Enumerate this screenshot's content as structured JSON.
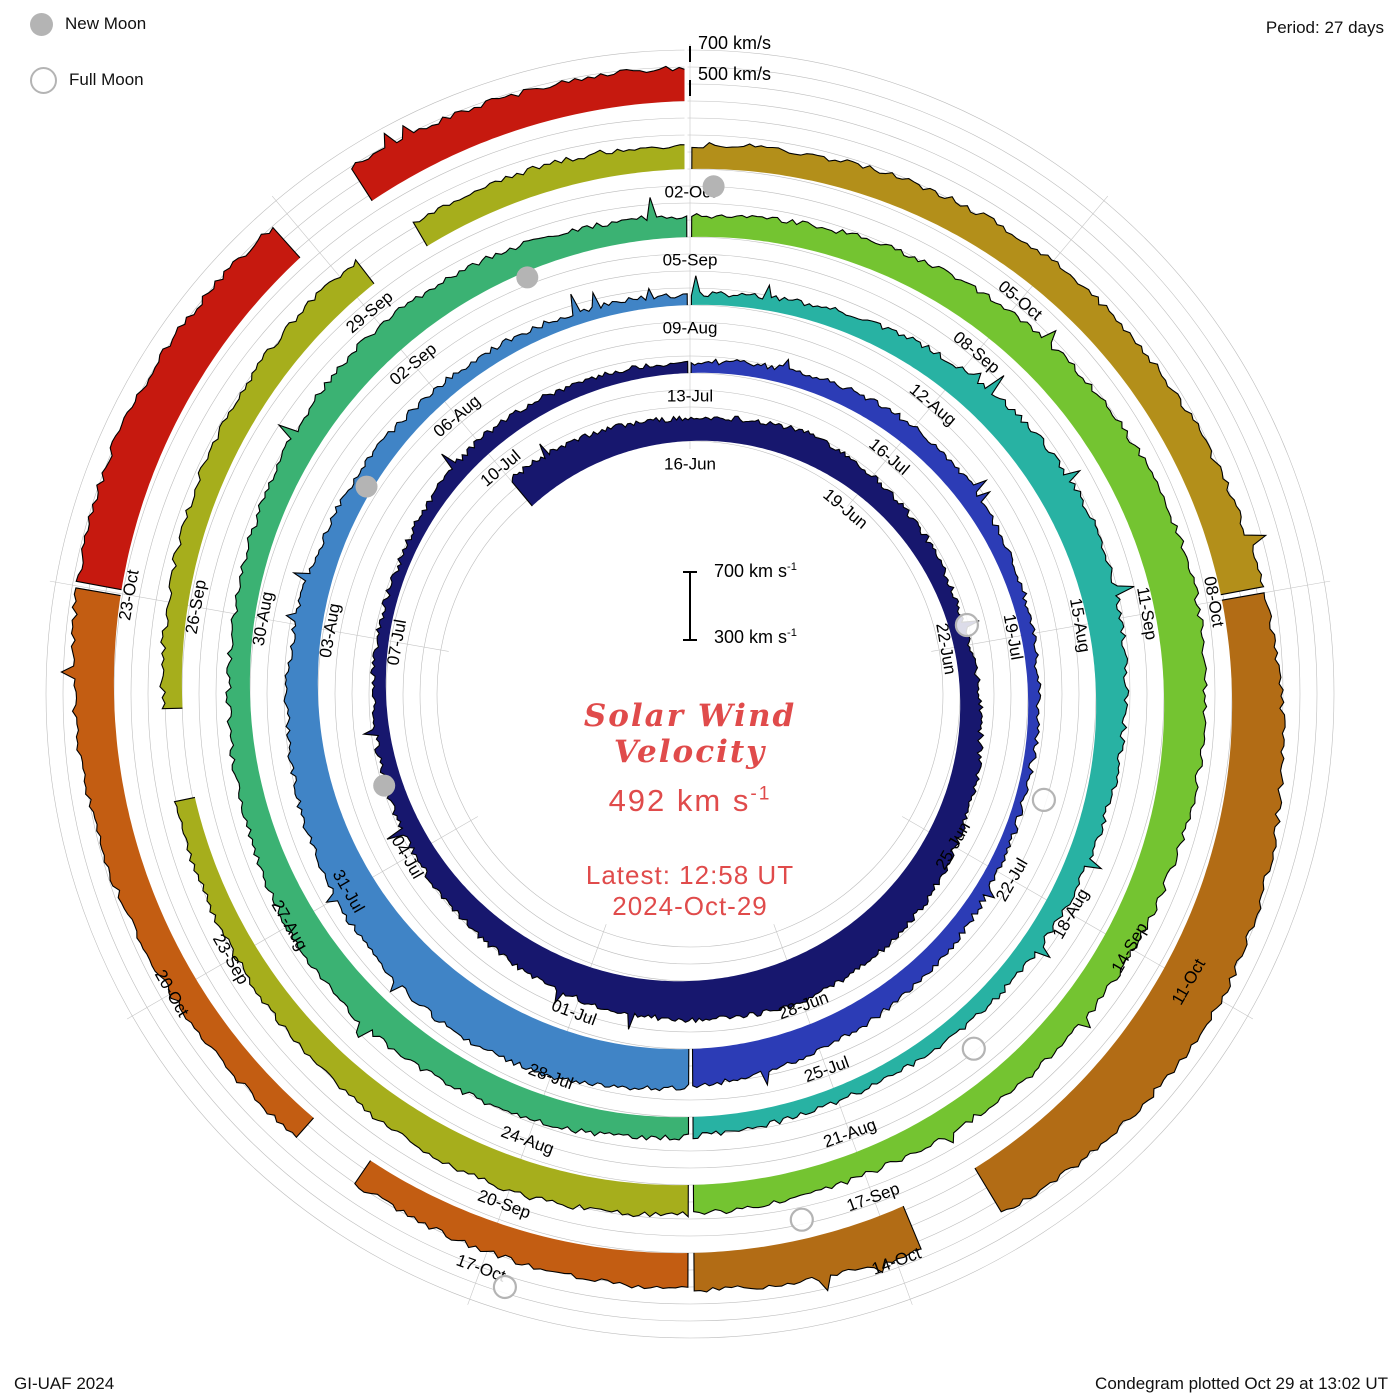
{
  "legend": {
    "new_moon": "New Moon",
    "full_moon": "Full Moon"
  },
  "header": {
    "period": "Period: 27 days"
  },
  "footer": {
    "left": "GI-UAF 2024",
    "right": "Condegram plotted Oct 29 at 13:02 UT"
  },
  "top_axis": {
    "outer": "700 km/s",
    "inner": "500 km/s"
  },
  "scale_bar": {
    "top": "700 km s",
    "bottom": "300 km s",
    "exp": "-1"
  },
  "center": {
    "title1": "Solar Wind",
    "title2": "Velocity",
    "value": "492 km s",
    "value_exp": "-1",
    "latest1": "Latest: 12:58 UT",
    "latest2": "2024-Oct-29",
    "accent_color": "#e04b4b"
  },
  "chart_data": {
    "type": "area",
    "variant": "condegram-spiral",
    "title": "Solar Wind Velocity",
    "period_days": 27,
    "start_date_day0": "2024-Jun-16",
    "data_begins_day": -3,
    "data_ends_day": 135,
    "end_timestamp": "2024-Oct-29 13:02 UT",
    "latest_value_km_s": 492,
    "latest_time": "12:58 UT",
    "radial_scale": {
      "min_km_s": 300,
      "max_km_s": 700,
      "units": "km/s"
    },
    "daily_values": [
      500,
      480,
      455,
      430,
      450,
      470,
      440,
      420,
      400,
      390,
      420,
      450,
      480,
      520,
      540,
      560,
      540,
      520,
      500,
      470,
      440,
      420,
      400,
      380,
      370,
      360,
      380,
      400,
      390,
      370,
      360,
      380,
      400,
      420,
      410,
      390,
      370,
      360,
      350,
      370,
      400,
      430,
      460,
      500,
      540,
      580,
      600,
      580,
      550,
      520,
      490,
      460,
      430,
      410,
      390,
      380,
      370,
      360,
      380,
      420,
      460,
      500,
      520,
      500,
      470,
      440,
      420,
      400,
      390,
      380,
      400,
      430,
      460,
      480,
      500,
      480,
      450,
      430,
      420,
      440,
      470,
      490,
      470,
      440,
      420,
      440,
      470,
      500,
      530,
      550,
      560,
      540,
      510,
      490,
      470,
      450,
      440,
      460,
      480,
      500,
      480,
      450,
      430,
      420,
      410,
      420,
      440,
      460,
      470,
      460,
      450,
      440,
      450,
      470,
      490,
      500,
      520,
      550,
      600,
      650,
      690,
      660,
      620,
      570,
      530,
      500,
      480,
      460,
      450,
      470,
      500,
      530,
      560,
      580,
      560,
      540,
      520,
      500,
      492
    ],
    "date_labels": [
      {
        "d": 0,
        "label": "16-Jun"
      },
      {
        "d": 3,
        "label": "19-Jun"
      },
      {
        "d": 6,
        "label": "22-Jun"
      },
      {
        "d": 9,
        "label": "25-Jun"
      },
      {
        "d": 12,
        "label": "28-Jun"
      },
      {
        "d": 15,
        "label": "01-Jul"
      },
      {
        "d": 18,
        "label": "04-Jul"
      },
      {
        "d": 21,
        "label": "07-Jul"
      },
      {
        "d": 24,
        "label": "10-Jul"
      },
      {
        "d": 27,
        "label": "13-Jul"
      },
      {
        "d": 30,
        "label": "16-Jul"
      },
      {
        "d": 33,
        "label": "19-Jul"
      },
      {
        "d": 36,
        "label": "22-Jul"
      },
      {
        "d": 39,
        "label": "25-Jul"
      },
      {
        "d": 42,
        "label": "28-Jul"
      },
      {
        "d": 45,
        "label": "31-Jul"
      },
      {
        "d": 48,
        "label": "03-Aug"
      },
      {
        "d": 51,
        "label": "06-Aug"
      },
      {
        "d": 54,
        "label": "09-Aug"
      },
      {
        "d": 57,
        "label": "12-Aug"
      },
      {
        "d": 60,
        "label": "15-Aug"
      },
      {
        "d": 63,
        "label": "18-Aug"
      },
      {
        "d": 66,
        "label": "21-Aug"
      },
      {
        "d": 69,
        "label": "24-Aug"
      },
      {
        "d": 72,
        "label": "27-Aug"
      },
      {
        "d": 75,
        "label": "30-Aug"
      },
      {
        "d": 78,
        "label": "02-Sep"
      },
      {
        "d": 81,
        "label": "05-Sep"
      },
      {
        "d": 84,
        "label": "08-Sep"
      },
      {
        "d": 87,
        "label": "11-Sep"
      },
      {
        "d": 90,
        "label": "14-Sep"
      },
      {
        "d": 93,
        "label": "17-Sep"
      },
      {
        "d": 96,
        "label": "20-Sep"
      },
      {
        "d": 99,
        "label": "23-Sep"
      },
      {
        "d": 102,
        "label": "26-Sep"
      },
      {
        "d": 105,
        "label": "29-Sep"
      },
      {
        "d": 108,
        "label": "02-Oct"
      },
      {
        "d": 111,
        "label": "05-Oct"
      },
      {
        "d": 114,
        "label": "08-Oct"
      },
      {
        "d": 117,
        "label": "11-Oct"
      },
      {
        "d": 120,
        "label": "14-Oct"
      },
      {
        "d": 123,
        "label": "17-Oct"
      },
      {
        "d": 126,
        "label": "20-Oct"
      },
      {
        "d": 129,
        "label": "23-Oct"
      }
    ],
    "color_segments": [
      {
        "from": -3,
        "to": 27,
        "color": "#17176e"
      },
      {
        "from": 27,
        "to": 40.5,
        "color": "#2c3cb6"
      },
      {
        "from": 40.5,
        "to": 54,
        "color": "#4084c6"
      },
      {
        "from": 54,
        "to": 67.5,
        "color": "#28b2a3"
      },
      {
        "from": 67.5,
        "to": 81,
        "color": "#3bb273"
      },
      {
        "from": 81,
        "to": 94.5,
        "color": "#74c431"
      },
      {
        "from": 94.5,
        "to": 108,
        "color": "#a6ae1c"
      },
      {
        "from": 108,
        "to": 114,
        "color": "#b38f1a"
      },
      {
        "from": 114,
        "to": 121.5,
        "color": "#b26c15"
      },
      {
        "from": 121.5,
        "to": 129,
        "color": "#c35d12"
      },
      {
        "from": 129,
        "to": 135,
        "color": "#c6190f"
      }
    ],
    "gaps": [
      [
        100.4,
        101.1
      ],
      [
        105.2,
        105.7
      ],
      [
        119.2,
        119.8
      ],
      [
        124.1,
        124.6
      ],
      [
        131.9,
        132.5
      ]
    ],
    "moons": {
      "new_days": [
        19,
        49.7,
        79.4,
        108.2
      ],
      "full_days": [
        5.7,
        35,
        64.6,
        93.6,
        122.8
      ]
    },
    "noise": {
      "seed": 12345,
      "amplitude": 17
    }
  }
}
